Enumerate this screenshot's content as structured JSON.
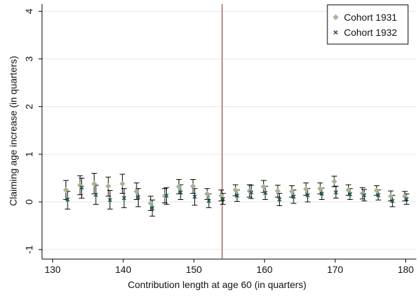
{
  "chart_data": {
    "type": "scatter",
    "title": "",
    "xlabel": "Contribution length at age 60 (in quarters)",
    "ylabel": "Claiming age increase (in quarters)",
    "xlim": [
      128.5,
      181.5
    ],
    "ylim": [
      -1.2,
      4.15
    ],
    "xticks": [
      130,
      140,
      150,
      160,
      170,
      180
    ],
    "yticks": [
      -1,
      0,
      1,
      2,
      3,
      4
    ],
    "ytick_labels": [
      "-1",
      "0",
      "1",
      "2",
      "3",
      "4"
    ],
    "grid": "horizontal",
    "legend_position": "top-right",
    "vline": {
      "x": 154,
      "color": "#a0524f"
    },
    "series": [
      {
        "name": "Cohort 1931",
        "marker": "diamond",
        "color": "#a4b592",
        "x": [
          132,
          134,
          136,
          138,
          140,
          142,
          144,
          146,
          148,
          150,
          152,
          154,
          156,
          158,
          160,
          162,
          164,
          166,
          168,
          170,
          172,
          174,
          176,
          178,
          180
        ],
        "y": [
          0.25,
          0.35,
          0.38,
          0.33,
          0.38,
          0.22,
          -0.03,
          0.13,
          0.32,
          0.33,
          0.17,
          0.13,
          0.25,
          0.23,
          0.32,
          0.23,
          0.22,
          0.27,
          0.28,
          0.43,
          0.25,
          0.18,
          0.24,
          0.12,
          0.12
        ],
        "ci_low": [
          0.05,
          0.15,
          0.17,
          0.12,
          0.18,
          0.05,
          -0.18,
          -0.02,
          0.17,
          0.18,
          0.05,
          0.02,
          0.13,
          0.1,
          0.2,
          0.1,
          0.1,
          0.14,
          0.17,
          0.32,
          0.14,
          0.06,
          0.14,
          0.02,
          0.02
        ],
        "ci_high": [
          0.45,
          0.55,
          0.6,
          0.52,
          0.58,
          0.4,
          0.12,
          0.28,
          0.47,
          0.47,
          0.28,
          0.25,
          0.36,
          0.36,
          0.45,
          0.35,
          0.34,
          0.4,
          0.4,
          0.54,
          0.36,
          0.3,
          0.34,
          0.23,
          0.22
        ]
      },
      {
        "name": "Cohort 1932",
        "marker": "x",
        "color": "#1f5a50",
        "x": [
          132,
          134,
          136,
          138,
          140,
          142,
          144,
          146,
          148,
          150,
          152,
          154,
          156,
          158,
          160,
          162,
          164,
          166,
          168,
          170,
          172,
          174,
          176,
          178,
          180
        ],
        "y": [
          0.05,
          0.3,
          0.15,
          0.04,
          0.08,
          0.1,
          -0.13,
          0.13,
          0.2,
          0.11,
          0.02,
          0.06,
          0.13,
          0.2,
          0.19,
          0.05,
          0.11,
          0.14,
          0.17,
          0.2,
          0.16,
          0.14,
          0.14,
          0.02,
          0.06
        ],
        "ci_low": [
          -0.15,
          0.08,
          -0.05,
          -0.15,
          -0.12,
          -0.1,
          -0.3,
          -0.05,
          0.05,
          -0.07,
          -0.12,
          -0.05,
          0.01,
          0.07,
          0.05,
          -0.08,
          -0.03,
          0.0,
          0.05,
          0.08,
          0.05,
          0.02,
          0.04,
          -0.1,
          -0.05
        ],
        "ci_high": [
          0.22,
          0.5,
          0.35,
          0.24,
          0.28,
          0.28,
          0.04,
          0.3,
          0.36,
          0.28,
          0.17,
          0.18,
          0.25,
          0.35,
          0.33,
          0.18,
          0.25,
          0.28,
          0.29,
          0.33,
          0.28,
          0.26,
          0.25,
          0.14,
          0.17
        ]
      }
    ]
  }
}
